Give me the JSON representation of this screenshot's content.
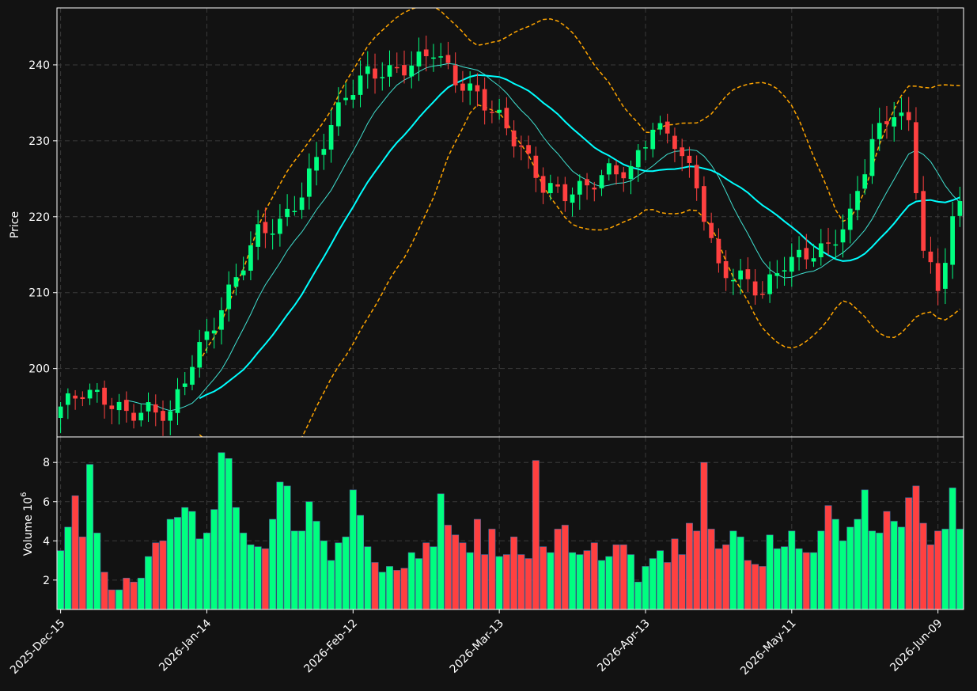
{
  "chart_data": {
    "type": "candlestick",
    "colors": {
      "background": "#121212",
      "up": "#00ff80",
      "down": "#ff4040",
      "ma_short": "#40e0d0",
      "ma_long": "#00ffff",
      "band": "#ffa500",
      "text": "#ffffff"
    },
    "price_panel": {
      "ylabel": "Price",
      "yticks": [
        200,
        210,
        220,
        230,
        240
      ],
      "ylim": [
        191,
        247.5
      ],
      "grid": true
    },
    "volume_panel": {
      "ylabel": "Volume  10",
      "ylabel_exponent": "6",
      "yticks": [
        2,
        4,
        6,
        8
      ],
      "ylim": [
        0.5,
        9.3
      ],
      "grid": true
    },
    "x_ticks": [
      {
        "label": "2025-Dec-15",
        "index": 0
      },
      {
        "label": "2026-Jan-14",
        "index": 20
      },
      {
        "label": "2026-Feb-12",
        "index": 40
      },
      {
        "label": "2026-Mar-13",
        "index": 60
      },
      {
        "label": "2026-Apr-13",
        "index": 80
      },
      {
        "label": "2026-May-11",
        "index": 100
      },
      {
        "label": "2026-Jun-09",
        "index": 120
      }
    ],
    "price_anchors": [
      [
        0,
        195
      ],
      [
        3,
        197
      ],
      [
        6,
        196
      ],
      [
        9,
        194
      ],
      [
        12,
        194.5
      ],
      [
        15,
        194
      ],
      [
        18,
        201
      ],
      [
        21,
        206
      ],
      [
        24,
        212
      ],
      [
        27,
        218
      ],
      [
        30,
        219
      ],
      [
        33,
        223
      ],
      [
        36,
        230
      ],
      [
        39,
        236
      ],
      [
        42,
        239
      ],
      [
        45,
        239
      ],
      [
        48,
        240
      ],
      [
        51,
        242
      ],
      [
        54,
        238
      ],
      [
        57,
        236
      ],
      [
        60,
        233
      ],
      [
        63,
        229
      ],
      [
        66,
        224
      ],
      [
        69,
        223
      ],
      [
        72,
        224
      ],
      [
        75,
        226
      ],
      [
        78,
        226
      ],
      [
        81,
        232
      ],
      [
        84,
        230
      ],
      [
        87,
        224
      ],
      [
        90,
        213
      ],
      [
        93,
        212
      ],
      [
        96,
        210
      ],
      [
        99,
        214
      ],
      [
        102,
        215
      ],
      [
        105,
        216
      ],
      [
        108,
        220
      ],
      [
        111,
        230
      ],
      [
        114,
        234
      ],
      [
        116,
        232
      ],
      [
        118,
        216
      ],
      [
        120,
        210
      ],
      [
        122,
        220
      ],
      [
        123,
        221
      ]
    ],
    "price_amplitude": 1.2,
    "volume_values": [
      3.5,
      4.7,
      6.3,
      4.2,
      7.9,
      4.4,
      2.4,
      1.5,
      1.5,
      2.1,
      1.9,
      2.1,
      3.2,
      3.9,
      4.0,
      5.1,
      5.2,
      5.7,
      5.5,
      4.1,
      4.4,
      5.6,
      8.5,
      8.2,
      5.7,
      4.4,
      3.8,
      3.7,
      3.6,
      5.1,
      7.0,
      6.8,
      4.5,
      4.5,
      6.0,
      5.0,
      4.0,
      3.0,
      3.9,
      4.2,
      6.6,
      5.3,
      3.7,
      2.9,
      2.4,
      2.7,
      2.5,
      2.6,
      3.4,
      3.1,
      3.9,
      3.7,
      6.4,
      4.8,
      4.3,
      3.9,
      3.4,
      5.1,
      3.3,
      4.6,
      3.2,
      3.3,
      4.2,
      3.3,
      3.1,
      8.1,
      3.7,
      3.4,
      4.6,
      4.8,
      3.4,
      3.3,
      3.5,
      3.9,
      3.0,
      3.2,
      3.8,
      3.8,
      3.3,
      1.9,
      2.7,
      3.1,
      3.5,
      2.9,
      4.1,
      3.3,
      4.9,
      4.5,
      8.0,
      4.6,
      3.6,
      3.8,
      4.5,
      4.2,
      3.0,
      2.8,
      2.7,
      4.3,
      3.6,
      3.7,
      4.5,
      3.6,
      3.4,
      3.4,
      4.5,
      5.8,
      5.1,
      4.0,
      4.7,
      5.1,
      6.6,
      4.5,
      4.4,
      5.5,
      5.0,
      4.7,
      6.2,
      6.8,
      4.9,
      3.8,
      4.5,
      4.6,
      6.7,
      4.6
    ]
  }
}
